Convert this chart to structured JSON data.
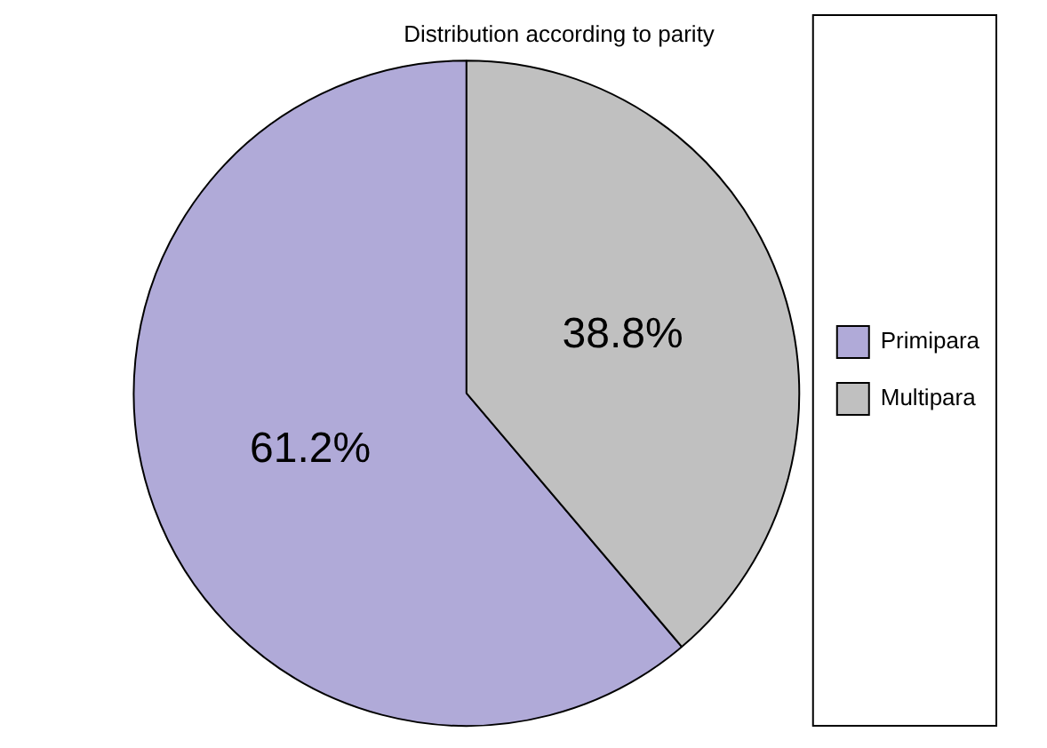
{
  "chart_data": {
    "type": "pie",
    "title": "Distribution according to parity",
    "categories": [
      "Primipara",
      "Multipara"
    ],
    "values": [
      61.2,
      38.8
    ],
    "value_labels": [
      "61.2%",
      "38.8%"
    ],
    "colors": [
      "#b0aad8",
      "#c0c0c0"
    ],
    "legend": "right"
  }
}
